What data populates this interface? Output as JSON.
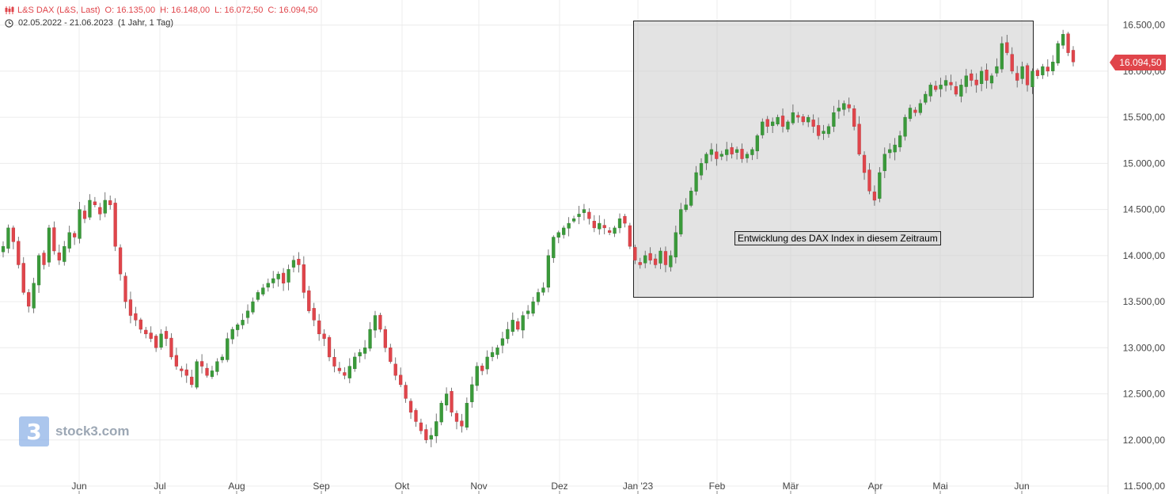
{
  "header": {
    "instrument": "L&S DAX (L&S, Last)",
    "open": "O: 16.135,00",
    "high": "H: 16.148,00",
    "low": "L: 16.072,50",
    "close": "C: 16.094,50",
    "range": "02.05.2022 - 21.06.2023",
    "interval": "(1 Jahr, 1 Tag)"
  },
  "last_price_label": "16.094,50",
  "annotation": {
    "label": "Entwicklung des DAX Index in diesem Zeitraum"
  },
  "watermark": {
    "logo_glyph": "3",
    "text": "stock3.com"
  },
  "colors": {
    "up": "#3a9a3a",
    "down": "#e0454b",
    "grid": "#ececec",
    "axis_text": "#444444",
    "annotation_fill": "#e2e2e2"
  },
  "chart_data": {
    "type": "candlestick",
    "title": "L&S DAX (L&S, Last)",
    "ylim": [
      11500,
      16600
    ],
    "y_ticks": [
      11500,
      12000,
      12500,
      13000,
      13500,
      14000,
      14500,
      15000,
      15500,
      16000,
      16500
    ],
    "y_tick_labels": [
      "11.500,00",
      "12.000,00",
      "12.500,00",
      "13.000,00",
      "13.500,00",
      "14.000,00",
      "14.500,00",
      "15.000,00",
      "15.500,00",
      "16.000,00",
      "16.500,00"
    ],
    "x_ticks": [
      "Jun",
      "Jul",
      "Aug",
      "Sep",
      "Okt",
      "Nov",
      "Dez",
      "Jan '23",
      "Feb",
      "Mär",
      "Apr",
      "Mai",
      "Jun"
    ],
    "last_price": 16094.5,
    "annotation_range": {
      "from_close": 13900,
      "to_close": 16100
    },
    "series": [
      {
        "name": "L&S DAX",
        "close": [
          14100,
          14300,
          14150,
          13900,
          13600,
          13450,
          13700,
          14000,
          13900,
          14300,
          14050,
          13950,
          14100,
          14250,
          14200,
          14500,
          14400,
          14600,
          14550,
          14450,
          14600,
          14550,
          14100,
          13800,
          13500,
          13350,
          13300,
          13200,
          13150,
          13100,
          13000,
          13150,
          13100,
          12900,
          12800,
          12750,
          12700,
          12600,
          12850,
          12800,
          12700,
          12750,
          12850,
          12900,
          13100,
          13200,
          13250,
          13300,
          13400,
          13500,
          13600,
          13650,
          13700,
          13750,
          13800,
          13700,
          13850,
          13950,
          13900,
          13600,
          13400,
          13300,
          13150,
          13100,
          12900,
          12800,
          12750,
          12700,
          12800,
          12900,
          12950,
          13000,
          13200,
          13350,
          13200,
          13000,
          12850,
          12700,
          12600,
          12450,
          12300,
          12200,
          12100,
          12000,
          12050,
          12200,
          12400,
          12500,
          12300,
          12200,
          12150,
          12400,
          12600,
          12800,
          12750,
          12900,
          12950,
          13000,
          13100,
          13200,
          13300,
          13200,
          13350,
          13400,
          13500,
          13600,
          13650,
          14000,
          14200,
          14250,
          14300,
          14350,
          14400,
          14450,
          14500,
          14400,
          14300,
          14350,
          14300,
          14250,
          14300,
          14400,
          14350,
          14100,
          13950,
          13900,
          14000,
          13950,
          13900,
          14050,
          13900,
          14000,
          14250,
          14500,
          14550,
          14700,
          14900,
          15000,
          15100,
          15150,
          15050,
          15100,
          15150,
          15100,
          15150,
          15050,
          15100,
          15150,
          15300,
          15450,
          15400,
          15450,
          15500,
          15400,
          15450,
          15550,
          15500,
          15450,
          15500,
          15400,
          15300,
          15350,
          15400,
          15550,
          15600,
          15650,
          15600,
          15400,
          15100,
          14900,
          14700,
          14600,
          14900,
          15100,
          15150,
          15200,
          15300,
          15500,
          15600,
          15550,
          15650,
          15750,
          15850,
          15800,
          15850,
          15900,
          15850,
          15750,
          15850,
          15950,
          15900,
          15850,
          16000,
          15900,
          15950,
          16050,
          16300,
          16200,
          16000,
          15900,
          16050,
          15850,
          16000,
          15950,
          16050,
          16000,
          16100,
          16300,
          16400,
          16200,
          16100
        ]
      }
    ]
  }
}
